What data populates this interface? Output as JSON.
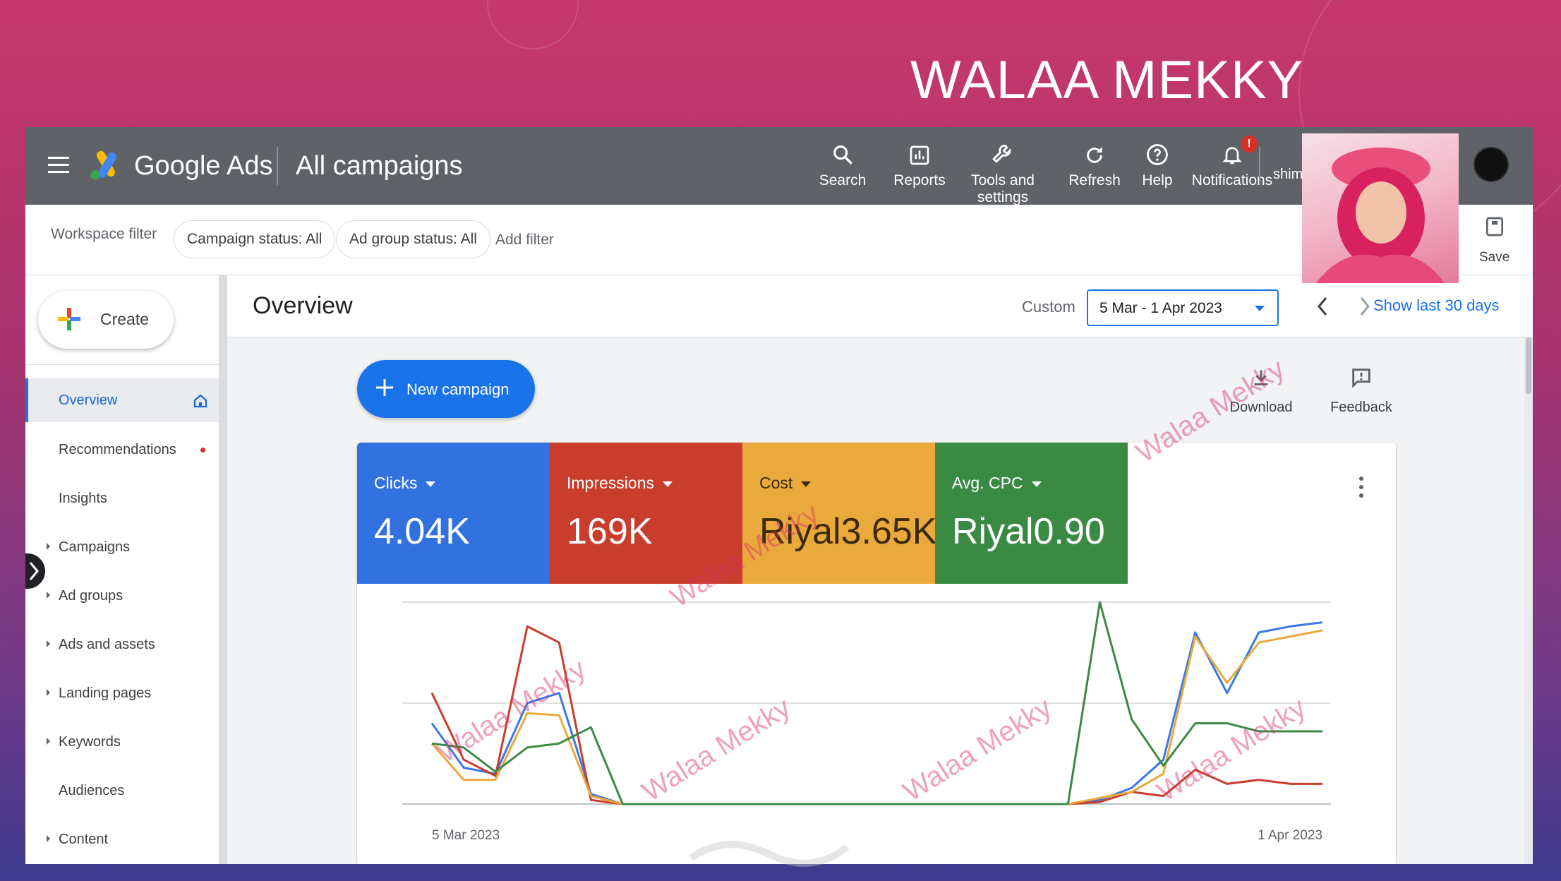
{
  "slide_title": "WALAA MEKKY",
  "topbar": {
    "app_name": "Google Ads",
    "page_name": "All campaigns",
    "tools": [
      {
        "label": "Search",
        "icon": "search-icon"
      },
      {
        "label": "Reports",
        "icon": "reports-icon"
      },
      {
        "label": "Tools and\nsettings",
        "icon": "wrench-icon"
      },
      {
        "label": "Refresh",
        "icon": "refresh-icon"
      },
      {
        "label": "Help",
        "icon": "help-icon"
      },
      {
        "label": "Notifications",
        "icon": "bell-icon"
      }
    ],
    "notification_badge": "!",
    "account_text": "shim"
  },
  "filterbar": {
    "workspace_label": "Workspace filter",
    "chip_campaign_status": "Campaign status: All",
    "chip_ad_group_status": "Ad group status: All",
    "add_filter": "Add filter",
    "save_label": "Save"
  },
  "sidebar": {
    "create_label": "Create",
    "items": [
      {
        "label": "Overview",
        "active": true
      },
      {
        "label": "Recommendations"
      },
      {
        "label": "Insights"
      },
      {
        "label": "Campaigns"
      },
      {
        "label": "Ad groups"
      },
      {
        "label": "Ads and assets"
      },
      {
        "label": "Landing pages"
      },
      {
        "label": "Keywords"
      },
      {
        "label": "Audiences"
      },
      {
        "label": "Content"
      }
    ]
  },
  "main": {
    "title": "Overview",
    "custom_label": "Custom",
    "date_range": "5 Mar - 1 Apr 2023",
    "show_last": "Show last 30 days",
    "new_campaign": "New campaign",
    "download": "Download",
    "feedback": "Feedback"
  },
  "metrics": [
    {
      "label": "Clicks",
      "value": "4.04K",
      "color": "#3272e0"
    },
    {
      "label": "Impressions",
      "value": "169K",
      "color": "#c93d2d"
    },
    {
      "label": "Cost",
      "value": "Riyal3.65K",
      "color": "#eaa93c"
    },
    {
      "label": "Avg. CPC",
      "value": "Riyal0.90",
      "color": "#3a8a44"
    }
  ],
  "watermark_text": "Walaa Mekky",
  "chart_data": {
    "type": "line",
    "x_start_label": "5 Mar 2023",
    "x_end_label": "1 Apr 2023",
    "grid": true,
    "series": [
      {
        "name": "Clicks",
        "color": "#3b78e7",
        "values": [
          0.4,
          0.18,
          0.15,
          0.5,
          0.55,
          0.05,
          0.0,
          0.0,
          0.0,
          0.0,
          0.0,
          0.0,
          0.0,
          0.0,
          0.0,
          0.0,
          0.0,
          0.0,
          0.0,
          0.0,
          0.0,
          0.02,
          0.08,
          0.22,
          0.85,
          0.55,
          0.85,
          0.88,
          0.9
        ]
      },
      {
        "name": "Impressions",
        "color": "#c93d2d",
        "values": [
          0.55,
          0.22,
          0.14,
          0.88,
          0.8,
          0.02,
          0.0,
          0.0,
          0.0,
          0.0,
          0.0,
          0.0,
          0.0,
          0.0,
          0.0,
          0.0,
          0.0,
          0.0,
          0.0,
          0.0,
          0.0,
          0.01,
          0.06,
          0.04,
          0.17,
          0.1,
          0.12,
          0.1,
          0.1
        ]
      },
      {
        "name": "Cost",
        "color": "#eaa93c",
        "values": [
          0.3,
          0.12,
          0.12,
          0.45,
          0.44,
          0.04,
          0.0,
          0.0,
          0.0,
          0.0,
          0.0,
          0.0,
          0.0,
          0.0,
          0.0,
          0.0,
          0.0,
          0.0,
          0.0,
          0.0,
          0.0,
          0.03,
          0.06,
          0.15,
          0.83,
          0.6,
          0.8,
          0.83,
          0.86
        ]
      },
      {
        "name": "Avg. CPC",
        "color": "#3a8a44",
        "values": [
          0.3,
          0.28,
          0.16,
          0.28,
          0.3,
          0.38,
          0.0,
          0.0,
          0.0,
          0.0,
          0.0,
          0.0,
          0.0,
          0.0,
          0.0,
          0.0,
          0.0,
          0.0,
          0.0,
          0.0,
          0.0,
          1.0,
          0.42,
          0.19,
          0.4,
          0.4,
          0.36,
          0.36,
          0.36
        ]
      }
    ]
  }
}
